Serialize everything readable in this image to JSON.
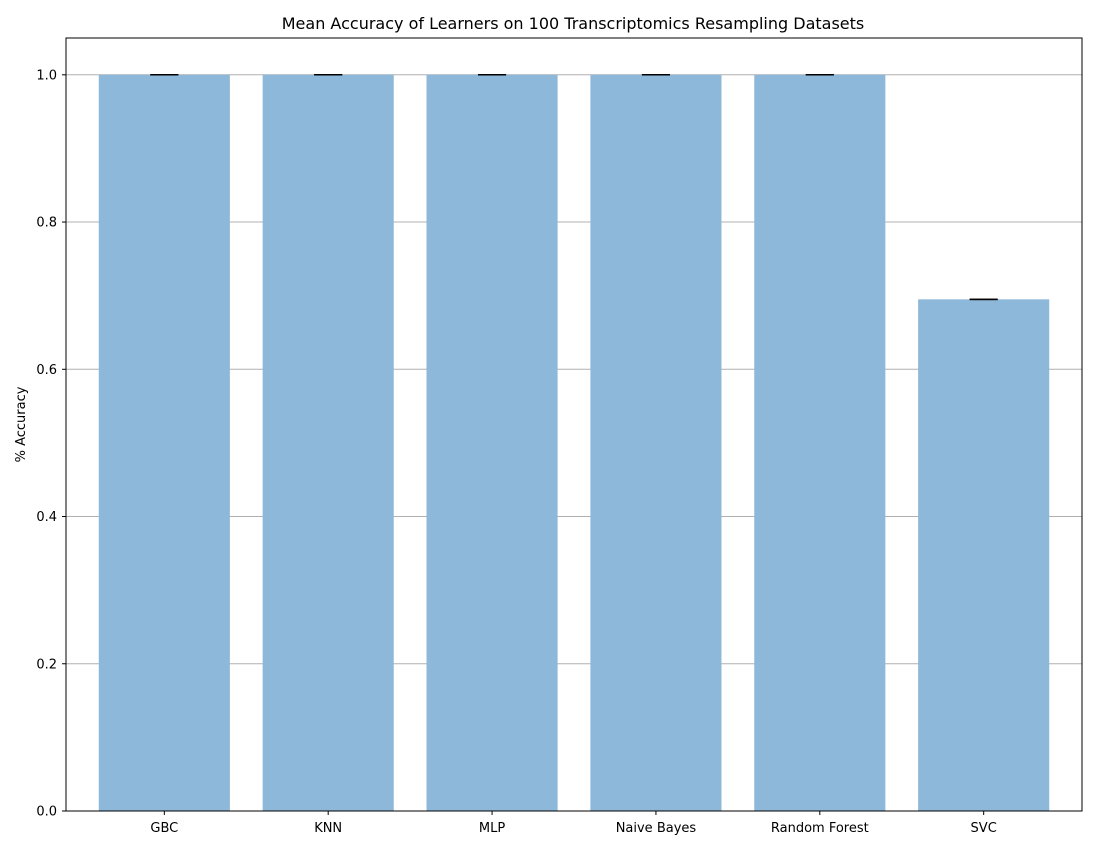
{
  "chart_data": {
    "type": "bar",
    "title": "Mean Accuracy of Learners on 100 Transcriptomics Resampling Datasets",
    "xlabel": "",
    "ylabel": "% Accuracy",
    "categories": [
      "GBC",
      "KNN",
      "MLP",
      "Naive Bayes",
      "Random Forest",
      "SVC"
    ],
    "values": [
      1.0,
      1.0,
      1.0,
      1.0,
      1.0,
      0.695
    ],
    "errors": [
      0.0,
      0.0,
      0.0,
      0.0,
      0.0,
      0.0
    ],
    "ylim": [
      0,
      1.05
    ],
    "yticks": [
      0.0,
      0.2,
      0.4,
      0.6,
      0.8,
      1.0
    ],
    "ytick_labels": [
      "0.0",
      "0.2",
      "0.4",
      "0.6",
      "0.8",
      "1.0"
    ],
    "grid": "horizontal",
    "bar_color": "#8db8d9",
    "error_bar_color": "#000000",
    "grid_color": "#b0b0b0"
  }
}
